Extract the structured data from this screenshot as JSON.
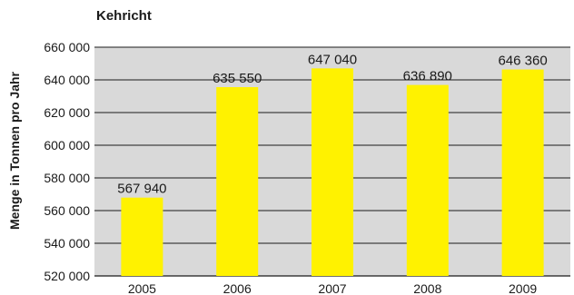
{
  "chart_data": {
    "type": "bar",
    "title": "Kehricht",
    "xlabel": "",
    "ylabel": "Menge in Tonnen pro Jahr",
    "categories": [
      "2005",
      "2006",
      "2007",
      "2008",
      "2009"
    ],
    "values": [
      567940,
      635550,
      647040,
      636890,
      646360
    ],
    "value_labels": [
      "567 940",
      "635 550",
      "647 040",
      "636 890",
      "646 360"
    ],
    "ylim": [
      520000,
      660000
    ],
    "yticks": [
      520000,
      540000,
      560000,
      580000,
      600000,
      620000,
      640000,
      660000
    ],
    "ytick_labels": [
      "520 000",
      "540 000",
      "560 000",
      "580 000",
      "600 000",
      "620 000",
      "640 000",
      "660 000"
    ],
    "grid": true,
    "colors": {
      "bar": "#FFF200",
      "plot_background": "#D9D9D9",
      "gridline": "#1a1a1a"
    }
  }
}
